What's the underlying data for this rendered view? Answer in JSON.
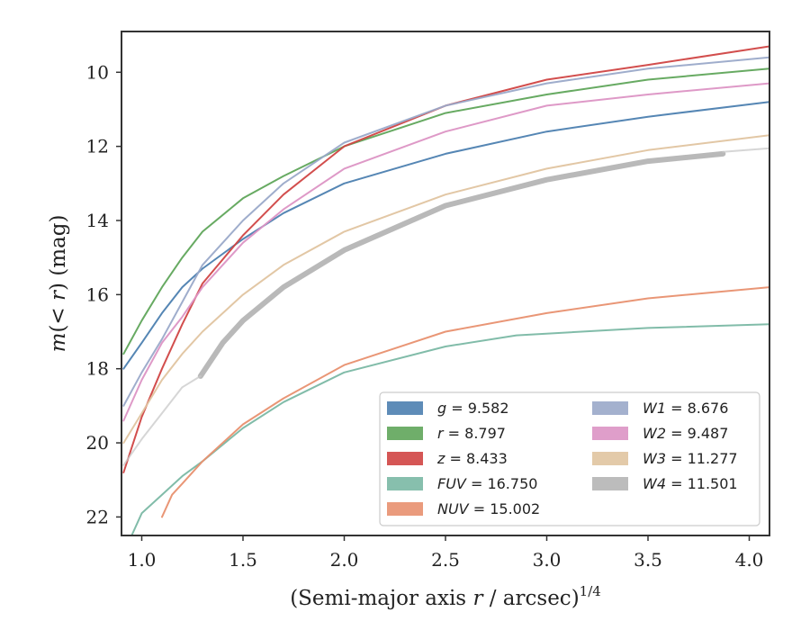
{
  "chart_data": {
    "type": "line",
    "xlabel": "(Semi-major axis r / arcsec)^1/4",
    "ylabel": "m(< r) (mag)",
    "xlim": [
      0.9,
      4.1
    ],
    "ylim": [
      22.5,
      8.9
    ],
    "y_inverted": true,
    "grid": false,
    "legend_placement": "lower-right",
    "legend_columns": 2,
    "xticks": [
      1.0,
      1.5,
      2.0,
      2.5,
      3.0,
      3.5,
      4.0
    ],
    "xtick_labels": [
      "1.0",
      "1.5",
      "2.0",
      "2.5",
      "3.0",
      "3.5",
      "4.0"
    ],
    "yticks": [
      10,
      12,
      14,
      16,
      18,
      20,
      22
    ],
    "ytick_labels": [
      "10",
      "12",
      "14",
      "16",
      "18",
      "20",
      "22"
    ],
    "series": [
      {
        "name": "g",
        "label": "g = 9.582",
        "color": "#4c7fb0",
        "width": 2,
        "x": [
          0.91,
          1.0,
          1.1,
          1.2,
          1.3,
          1.5,
          1.7,
          2.0,
          2.5,
          3.0,
          3.5,
          4.1
        ],
        "y": [
          18.0,
          17.3,
          16.5,
          15.8,
          15.3,
          14.5,
          13.8,
          13.0,
          12.2,
          11.6,
          11.2,
          10.8
        ]
      },
      {
        "name": "r",
        "label": "r = 8.797",
        "color": "#5fa55a",
        "width": 2,
        "x": [
          0.91,
          1.0,
          1.1,
          1.2,
          1.3,
          1.5,
          1.7,
          2.0,
          2.5,
          3.0,
          3.5,
          4.1
        ],
        "y": [
          17.6,
          16.7,
          15.8,
          15.0,
          14.3,
          13.4,
          12.8,
          12.0,
          11.1,
          10.6,
          10.2,
          9.9
        ]
      },
      {
        "name": "z",
        "label": "z = 8.433",
        "color": "#d04443",
        "width": 2,
        "x": [
          0.91,
          1.0,
          1.1,
          1.2,
          1.3,
          1.5,
          1.7,
          2.0,
          2.5,
          3.0,
          3.5,
          4.1
        ],
        "y": [
          20.8,
          19.3,
          18.0,
          16.8,
          15.7,
          14.4,
          13.3,
          12.0,
          10.9,
          10.2,
          9.8,
          9.3
        ]
      },
      {
        "name": "FUV",
        "label": "FUV = 16.750",
        "color": "#7ab8a4",
        "width": 2,
        "x": [
          0.95,
          1.0,
          1.1,
          1.2,
          1.3,
          1.5,
          1.7,
          2.0,
          2.5,
          2.85,
          3.5,
          4.1
        ],
        "y": [
          22.5,
          21.9,
          21.4,
          20.9,
          20.5,
          19.6,
          18.9,
          18.1,
          17.4,
          17.1,
          16.9,
          16.8
        ]
      },
      {
        "name": "NUV",
        "label": "NUV = 15.002",
        "color": "#e8906f",
        "width": 2,
        "x": [
          1.1,
          1.15,
          1.2,
          1.3,
          1.5,
          1.7,
          2.0,
          2.5,
          3.0,
          3.5,
          4.1
        ],
        "y": [
          22.0,
          21.4,
          21.1,
          20.5,
          19.5,
          18.8,
          17.9,
          17.0,
          16.5,
          16.1,
          15.8
        ]
      },
      {
        "name": "W1",
        "label": "W1 = 8.676",
        "color": "#9aa9c9",
        "width": 2,
        "x": [
          0.91,
          1.0,
          1.1,
          1.2,
          1.3,
          1.5,
          1.7,
          2.0,
          2.5,
          3.0,
          3.5,
          4.1
        ],
        "y": [
          19.0,
          18.1,
          17.2,
          16.2,
          15.2,
          14.0,
          13.0,
          11.9,
          10.9,
          10.3,
          9.9,
          9.6
        ]
      },
      {
        "name": "W2",
        "label": "W2 = 9.487",
        "color": "#dc93c4",
        "width": 2,
        "x": [
          0.91,
          1.0,
          1.1,
          1.2,
          1.3,
          1.5,
          1.7,
          2.0,
          2.5,
          3.0,
          3.5,
          4.1
        ],
        "y": [
          19.4,
          18.3,
          17.3,
          16.6,
          15.8,
          14.6,
          13.7,
          12.6,
          11.6,
          10.9,
          10.6,
          10.3
        ]
      },
      {
        "name": "W3",
        "label": "W3 = 11.277",
        "color": "#e0c4a0",
        "width": 2,
        "x": [
          0.91,
          1.0,
          1.1,
          1.2,
          1.3,
          1.5,
          1.7,
          2.0,
          2.5,
          3.0,
          3.5,
          4.1
        ],
        "y": [
          20.0,
          19.2,
          18.3,
          17.6,
          17.0,
          16.0,
          15.2,
          14.3,
          13.3,
          12.6,
          12.1,
          11.7
        ]
      },
      {
        "name": "W4",
        "label": "W4 = 11.501",
        "color": "#b5b5b5",
        "width": 6,
        "x": [
          1.29,
          1.4,
          1.5,
          1.7,
          2.0,
          2.5,
          3.0,
          3.5,
          3.87
        ],
        "y": [
          18.2,
          17.3,
          16.7,
          15.8,
          14.8,
          13.6,
          12.9,
          12.4,
          12.2
        ]
      },
      {
        "name": "W4 extension",
        "color": "#c8c8c8",
        "width": 2,
        "x": [
          0.91,
          1.0,
          1.1,
          1.2,
          1.29
        ],
        "y": [
          20.6,
          19.9,
          19.2,
          18.5,
          18.2
        ]
      },
      {
        "name": "W4 tail",
        "color": "#c8c8c8",
        "width": 2,
        "x": [
          3.87,
          4.1
        ],
        "y": [
          12.15,
          12.05
        ]
      }
    ]
  }
}
